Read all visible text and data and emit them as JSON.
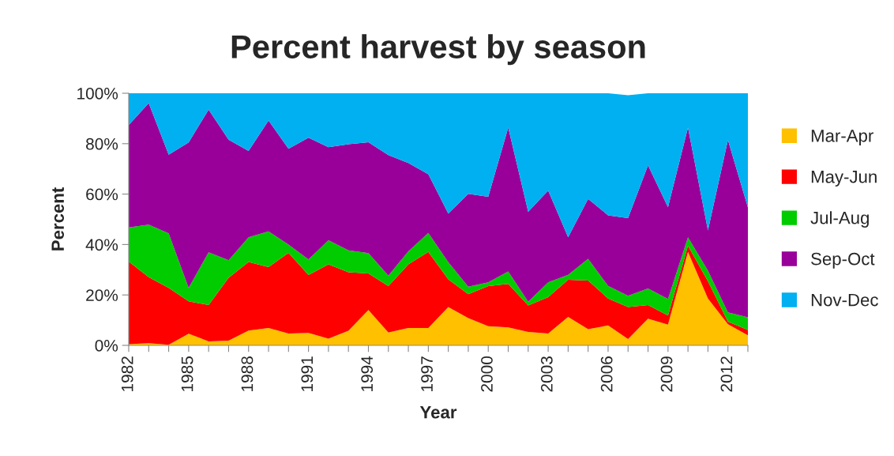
{
  "chart_data": {
    "type": "area",
    "stacked": true,
    "title": "Percent harvest by season",
    "xlabel": "Year",
    "ylabel": "Percent",
    "x": [
      1982,
      1983,
      1984,
      1985,
      1986,
      1987,
      1988,
      1989,
      1990,
      1991,
      1992,
      1993,
      1994,
      1995,
      1996,
      1997,
      1998,
      1999,
      2000,
      2001,
      2002,
      2003,
      2004,
      2005,
      2006,
      2007,
      2008,
      2009,
      2010,
      2011,
      2012,
      2013
    ],
    "series": [
      {
        "name": "Mar-Apr",
        "color": "#ffc000",
        "values": [
          0.5,
          0.9,
          0.2,
          4.6,
          1.6,
          1.9,
          5.9,
          6.9,
          4.7,
          4.9,
          2.7,
          5.8,
          14.0,
          5.1,
          6.9,
          6.9,
          15.2,
          10.8,
          7.6,
          7.1,
          5.3,
          4.7,
          11.3,
          6.4,
          7.9,
          2.5,
          10.6,
          8.2,
          37.1,
          18.6,
          8.4,
          4.0
        ]
      },
      {
        "name": "May-Jun",
        "color": "#ff0000",
        "values": [
          32.7,
          26.1,
          22.6,
          12.9,
          14.4,
          24.9,
          27.2,
          24.1,
          32.0,
          23.0,
          29.4,
          23.2,
          14.5,
          18.4,
          25.2,
          30.2,
          11.0,
          9.5,
          15.9,
          17.3,
          10.5,
          14.4,
          14.7,
          19.3,
          10.7,
          12.7,
          5.4,
          3.6,
          2.4,
          6.8,
          1.0,
          2.1
        ]
      },
      {
        "name": "Jul-Aug",
        "color": "#00cc00",
        "values": [
          13.6,
          20.9,
          21.6,
          5.3,
          20.9,
          7.0,
          9.8,
          14.2,
          3.3,
          6.2,
          9.6,
          8.7,
          8.1,
          4.2,
          5.2,
          7.5,
          6.8,
          3.0,
          1.5,
          4.9,
          1.5,
          5.9,
          2.0,
          8.6,
          5.0,
          4.5,
          6.6,
          6.6,
          3.4,
          4.2,
          3.7,
          5.0
        ]
      },
      {
        "name": "Sep-Oct",
        "color": "#990099",
        "values": [
          40.6,
          48.2,
          31.2,
          57.7,
          56.6,
          47.8,
          34.2,
          44.0,
          38.0,
          48.3,
          36.9,
          42.1,
          44.0,
          47.8,
          35.0,
          23.3,
          19.3,
          36.8,
          33.9,
          57.1,
          35.7,
          36.4,
          14.9,
          23.8,
          28.0,
          30.8,
          48.8,
          36.4,
          43.5,
          16.0,
          68.3,
          43.6
        ]
      },
      {
        "name": "Nov-Dec",
        "color": "#00b0f0",
        "values": [
          12.6,
          3.9,
          24.4,
          19.5,
          6.5,
          18.4,
          22.9,
          10.8,
          22.0,
          17.6,
          21.4,
          20.2,
          19.4,
          24.5,
          27.7,
          32.1,
          47.7,
          39.9,
          41.1,
          13.6,
          47.0,
          38.6,
          57.1,
          41.9,
          48.4,
          48.7,
          28.6,
          45.2,
          13.6,
          54.4,
          18.6,
          45.3
        ]
      }
    ],
    "xlim": [
      1982,
      2013
    ],
    "xticks": [
      {
        "value": 1982,
        "label": "1982"
      },
      {
        "value": 1983,
        "label": null
      },
      {
        "value": 1984,
        "label": null
      },
      {
        "value": 1985,
        "label": "1985"
      },
      {
        "value": 1986,
        "label": null
      },
      {
        "value": 1987,
        "label": null
      },
      {
        "value": 1988,
        "label": "1988"
      },
      {
        "value": 1989,
        "label": null
      },
      {
        "value": 1990,
        "label": null
      },
      {
        "value": 1991,
        "label": "1991"
      },
      {
        "value": 1992,
        "label": null
      },
      {
        "value": 1993,
        "label": null
      },
      {
        "value": 1994,
        "label": "1994"
      },
      {
        "value": 1995,
        "label": null
      },
      {
        "value": 1996,
        "label": null
      },
      {
        "value": 1997,
        "label": "1997"
      },
      {
        "value": 1998,
        "label": null
      },
      {
        "value": 1999,
        "label": null
      },
      {
        "value": 2000,
        "label": "2000"
      },
      {
        "value": 2001,
        "label": null
      },
      {
        "value": 2002,
        "label": null
      },
      {
        "value": 2003,
        "label": "2003"
      },
      {
        "value": 2004,
        "label": null
      },
      {
        "value": 2005,
        "label": null
      },
      {
        "value": 2006,
        "label": "2006"
      },
      {
        "value": 2007,
        "label": null
      },
      {
        "value": 2008,
        "label": null
      },
      {
        "value": 2009,
        "label": "2009"
      },
      {
        "value": 2010,
        "label": null
      },
      {
        "value": 2011,
        "label": null
      },
      {
        "value": 2012,
        "label": "2012"
      },
      {
        "value": 2013,
        "label": null
      }
    ],
    "ylim": [
      0,
      100
    ],
    "yticks": [
      {
        "value": 0,
        "label": "0%"
      },
      {
        "value": 20,
        "label": "20%"
      },
      {
        "value": 40,
        "label": "40%"
      },
      {
        "value": 60,
        "label": "60%"
      },
      {
        "value": 80,
        "label": "80%"
      },
      {
        "value": 100,
        "label": "100%"
      }
    ],
    "grid": false,
    "legend": "right"
  }
}
